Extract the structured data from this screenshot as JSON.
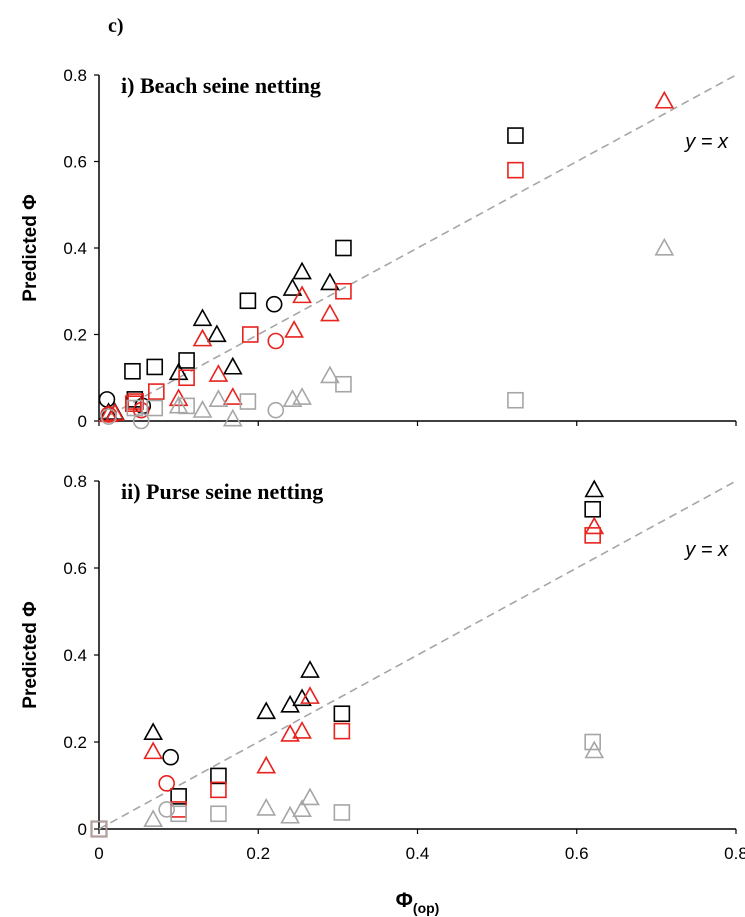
{
  "figure_label": "c)",
  "chart_data": [
    {
      "type": "scatter",
      "title": "i) Beach seine netting",
      "xlabel": "",
      "ylabel": "Predicted Φ",
      "xlim": [
        0,
        0.8
      ],
      "ylim": [
        0,
        0.8
      ],
      "xticks": [],
      "yticks": [
        "0",
        "0.2",
        "0.4",
        "0.6",
        "0.8"
      ],
      "reference_line": {
        "label": "y = x",
        "color": "#a6a6a6",
        "dashed": true
      },
      "series": [
        {
          "marker": "square",
          "color": "#000000",
          "points": [
            [
              0.042,
              0.115
            ],
            [
              0.045,
              0.05
            ],
            [
              0.07,
              0.125
            ],
            [
              0.11,
              0.14
            ],
            [
              0.187,
              0.278
            ],
            [
              0.307,
              0.4
            ],
            [
              0.523,
              0.66
            ]
          ]
        },
        {
          "marker": "triangle",
          "color": "#000000",
          "points": [
            [
              0.012,
              0.02
            ],
            [
              0.02,
              0.02
            ],
            [
              0.1,
              0.112
            ],
            [
              0.13,
              0.237
            ],
            [
              0.148,
              0.2
            ],
            [
              0.168,
              0.125
            ],
            [
              0.243,
              0.307
            ],
            [
              0.255,
              0.345
            ],
            [
              0.29,
              0.32
            ]
          ]
        },
        {
          "marker": "circle",
          "color": "#000000",
          "points": [
            [
              0.01,
              0.05
            ],
            [
              0.055,
              0.035
            ],
            [
              0.22,
              0.27
            ]
          ]
        },
        {
          "marker": "square",
          "color": "#e8231d",
          "points": [
            [
              0.043,
              0.04
            ],
            [
              0.046,
              0.045
            ],
            [
              0.072,
              0.068
            ],
            [
              0.11,
              0.1
            ],
            [
              0.19,
              0.2
            ],
            [
              0.307,
              0.3
            ],
            [
              0.523,
              0.58
            ]
          ]
        },
        {
          "marker": "triangle",
          "color": "#e8231d",
          "points": [
            [
              0.012,
              0.015
            ],
            [
              0.02,
              0.018
            ],
            [
              0.1,
              0.052
            ],
            [
              0.13,
              0.19
            ],
            [
              0.15,
              0.108
            ],
            [
              0.168,
              0.055
            ],
            [
              0.245,
              0.21
            ],
            [
              0.255,
              0.29
            ],
            [
              0.29,
              0.248
            ],
            [
              0.71,
              0.74
            ]
          ]
        },
        {
          "marker": "circle",
          "color": "#e8231d",
          "points": [
            [
              0.012,
              0.015
            ],
            [
              0.053,
              0.025
            ],
            [
              0.222,
              0.185
            ]
          ]
        },
        {
          "marker": "square",
          "color": "#a6a6a6",
          "points": [
            [
              0.045,
              0.03
            ],
            [
              0.07,
              0.03
            ],
            [
              0.11,
              0.035
            ],
            [
              0.187,
              0.045
            ],
            [
              0.307,
              0.085
            ],
            [
              0.523,
              0.048
            ]
          ]
        },
        {
          "marker": "triangle",
          "color": "#a6a6a6",
          "points": [
            [
              0.1,
              0.035
            ],
            [
              0.13,
              0.025
            ],
            [
              0.15,
              0.05
            ],
            [
              0.168,
              0.005
            ],
            [
              0.243,
              0.05
            ],
            [
              0.255,
              0.055
            ],
            [
              0.29,
              0.105
            ],
            [
              0.71,
              0.4
            ]
          ]
        },
        {
          "marker": "circle",
          "color": "#a6a6a6",
          "points": [
            [
              0.012,
              0.01
            ],
            [
              0.053,
              0.0
            ],
            [
              0.222,
              0.025
            ]
          ]
        }
      ]
    },
    {
      "type": "scatter",
      "title": "ii) Purse seine netting",
      "xlabel": "Φ(op)",
      "ylabel": "Predicted Φ",
      "xlim": [
        0,
        0.8
      ],
      "ylim": [
        0,
        0.8
      ],
      "xticks": [
        "0",
        "0.2",
        "0.4",
        "0.6",
        "0.8"
      ],
      "yticks": [
        "0",
        "0.2",
        "0.4",
        "0.6",
        "0.8"
      ],
      "reference_line": {
        "label": "y = x",
        "color": "#a6a6a6",
        "dashed": true
      },
      "series": [
        {
          "marker": "square",
          "color": "#000000",
          "points": [
            [
              0.0,
              0.0
            ],
            [
              0.1,
              0.075
            ],
            [
              0.15,
              0.122
            ],
            [
              0.305,
              0.265
            ],
            [
              0.62,
              0.735
            ]
          ]
        },
        {
          "marker": "triangle",
          "color": "#000000",
          "points": [
            [
              0.068,
              0.222
            ],
            [
              0.21,
              0.27
            ],
            [
              0.24,
              0.285
            ],
            [
              0.255,
              0.3
            ],
            [
              0.265,
              0.365
            ],
            [
              0.622,
              0.78
            ]
          ]
        },
        {
          "marker": "circle",
          "color": "#000000",
          "points": [
            [
              0.09,
              0.165
            ]
          ]
        },
        {
          "marker": "square",
          "color": "#e8231d",
          "points": [
            [
              0.0,
              0.0
            ],
            [
              0.1,
              0.045
            ],
            [
              0.15,
              0.09
            ],
            [
              0.305,
              0.225
            ],
            [
              0.62,
              0.675
            ]
          ]
        },
        {
          "marker": "triangle",
          "color": "#e8231d",
          "points": [
            [
              0.068,
              0.178
            ],
            [
              0.21,
              0.145
            ],
            [
              0.24,
              0.218
            ],
            [
              0.255,
              0.225
            ],
            [
              0.265,
              0.305
            ],
            [
              0.622,
              0.695
            ]
          ]
        },
        {
          "marker": "circle",
          "color": "#e8231d",
          "points": [
            [
              0.085,
              0.105
            ]
          ]
        },
        {
          "marker": "square",
          "color": "#a6a6a6",
          "points": [
            [
              0.0,
              0.0
            ],
            [
              0.1,
              0.035
            ],
            [
              0.15,
              0.035
            ],
            [
              0.305,
              0.038
            ],
            [
              0.62,
              0.2
            ]
          ]
        },
        {
          "marker": "triangle",
          "color": "#a6a6a6",
          "points": [
            [
              0.068,
              0.022
            ],
            [
              0.21,
              0.048
            ],
            [
              0.24,
              0.03
            ],
            [
              0.255,
              0.045
            ],
            [
              0.265,
              0.072
            ],
            [
              0.622,
              0.18
            ]
          ]
        },
        {
          "marker": "circle",
          "color": "#a6a6a6",
          "points": [
            [
              0.085,
              0.045
            ]
          ]
        }
      ]
    }
  ]
}
